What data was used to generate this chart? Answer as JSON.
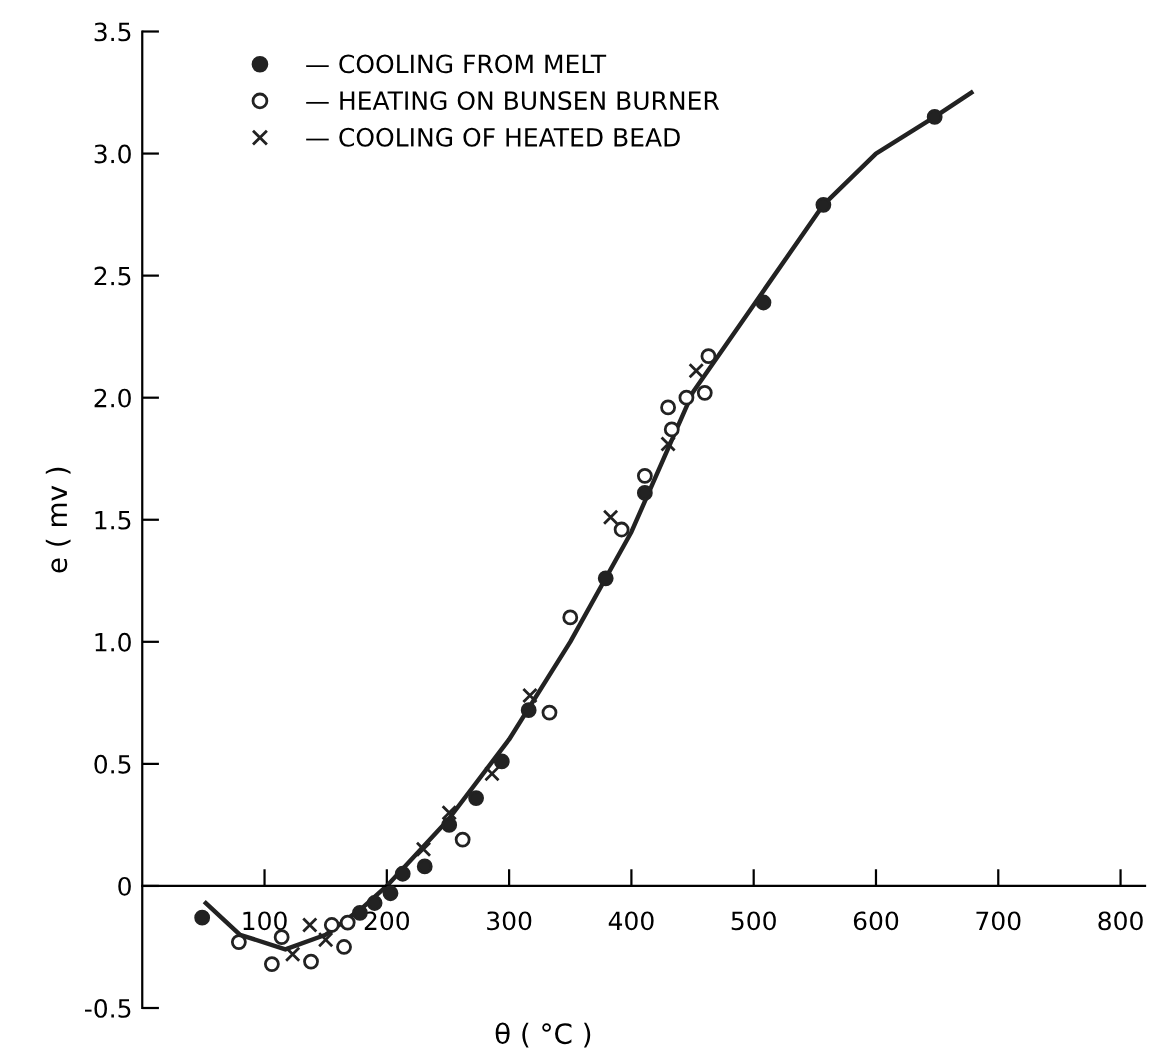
{
  "chart_data": {
    "type": "scatter",
    "xlabel": "θ ( °C )",
    "ylabel": "e ( mv )",
    "xlim": [
      0,
      820
    ],
    "ylim": [
      -0.5,
      3.5
    ],
    "xticks": [
      100,
      200,
      300,
      400,
      500,
      600,
      700,
      800
    ],
    "yticks": [
      {
        "value": -0.5,
        "label": "-0.5"
      },
      0,
      {
        "value": 0.5,
        "label": "0.5"
      },
      {
        "value": 1.0,
        "label": "1.0"
      },
      {
        "value": 1.5,
        "label": "1.5"
      },
      {
        "value": 2.0,
        "label": "2.0"
      },
      {
        "value": 2.5,
        "label": "2.5"
      },
      {
        "value": 3.0,
        "label": "3.0"
      },
      {
        "value": 3.5,
        "label": "3.5"
      }
    ],
    "grid": false,
    "legend": "top left",
    "series": [
      {
        "name": "— COOLING FROM MELT",
        "color": "#222222",
        "marker": "circle",
        "x": [
          49,
          178,
          190,
          203,
          213,
          231,
          251,
          273,
          294,
          316,
          379,
          411,
          508,
          557,
          648
        ],
        "values": [
          -0.13,
          -0.11,
          -0.07,
          -0.03,
          0.05,
          0.08,
          0.25,
          0.36,
          0.51,
          0.72,
          1.26,
          1.61,
          2.39,
          2.79,
          3.15
        ]
      },
      {
        "name": "— HEATING ON BUNSEN BURNER",
        "color": "#ffffff",
        "marker": "circle",
        "x": [
          79,
          106,
          114,
          138,
          155,
          165,
          168,
          262,
          333,
          350,
          392,
          411,
          430,
          433,
          445,
          460,
          463
        ],
        "values": [
          -0.23,
          -0.32,
          -0.21,
          -0.31,
          -0.16,
          -0.25,
          -0.15,
          0.19,
          0.71,
          1.1,
          1.46,
          1.68,
          1.96,
          1.87,
          2.0,
          2.02,
          2.17
        ]
      },
      {
        "name": "— COOLING OF HEATED BEAD",
        "color": "#222222",
        "marker": "cross",
        "x": [
          123,
          137,
          150,
          230,
          251,
          286,
          317,
          383,
          430,
          453
        ],
        "values": [
          -0.28,
          -0.16,
          -0.22,
          0.15,
          0.3,
          0.46,
          0.78,
          1.51,
          1.81,
          2.11
        ]
      },
      {
        "type": "line",
        "color": "#222222",
        "x": [
          52,
          80,
          117,
          150,
          180,
          200,
          250,
          300,
          350,
          400,
          450,
          500,
          557,
          600,
          648,
          678
        ],
        "values": [
          -0.07,
          -0.2,
          -0.26,
          -0.2,
          -0.09,
          0,
          0.27,
          0.6,
          1.0,
          1.45,
          2.02,
          2.38,
          2.79,
          3.0,
          3.15,
          3.25
        ]
      }
    ]
  }
}
